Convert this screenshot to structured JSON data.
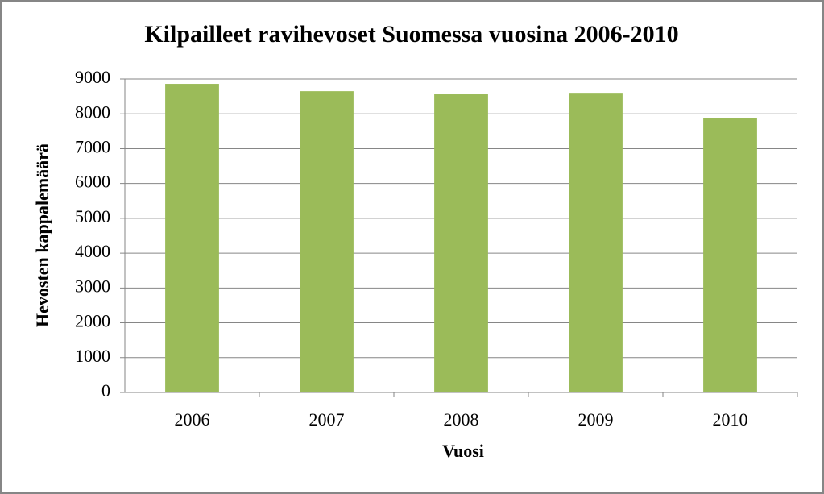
{
  "chart_data": {
    "type": "bar",
    "title": "Kilpailleet ravihevoset Suomessa vuosina 2006-2010",
    "x_label": "Vuosi",
    "y_label": "Hevosten kappalemäärä",
    "categories": [
      "2006",
      "2007",
      "2008",
      "2009",
      "2010"
    ],
    "values": [
      8860,
      8650,
      8560,
      8580,
      7870
    ],
    "color": "#9bbb59",
    "ylim": [
      0,
      9000
    ],
    "yticks": [
      0,
      1000,
      2000,
      3000,
      4000,
      5000,
      6000,
      7000,
      8000,
      9000
    ],
    "grid": true
  }
}
